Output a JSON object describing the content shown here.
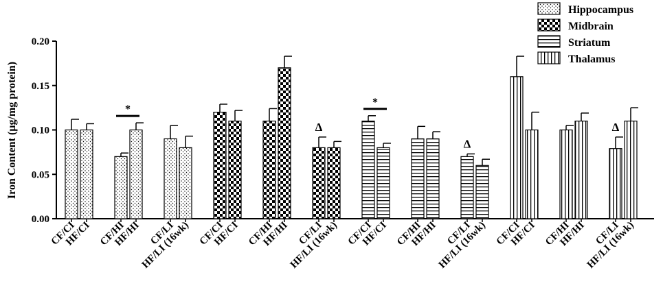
{
  "chart_data": {
    "type": "bar",
    "ylabel": "Iron Content (µg/mg protein)",
    "ylim": [
      0,
      0.2
    ],
    "yticks": [
      "0.00",
      "0.05",
      "0.10",
      "0.15",
      "0.20"
    ],
    "ytick_values": [
      0,
      0.05,
      0.1,
      0.15,
      0.2
    ],
    "legend_position": "top-right",
    "legend": [
      {
        "name": "Hippocampus",
        "pattern": "dots"
      },
      {
        "name": "Midbrain",
        "pattern": "checker"
      },
      {
        "name": "Striatum",
        "pattern": "hlines"
      },
      {
        "name": "Thalamus",
        "pattern": "vlines"
      }
    ],
    "bars": [
      {
        "region": "Hippocampus",
        "label": "CF/CI",
        "value": 0.1,
        "error": 0.012
      },
      {
        "region": "Hippocampus",
        "label": "HF/CI",
        "value": 0.1,
        "error": 0.007
      },
      {
        "region": "Hippocampus",
        "label": "CF/HI",
        "value": 0.07,
        "error": 0.004
      },
      {
        "region": "Hippocampus",
        "label": "HF/HI",
        "value": 0.1,
        "error": 0.008
      },
      {
        "region": "Hippocampus",
        "label": "CF/LI",
        "value": 0.09,
        "error": 0.015
      },
      {
        "region": "Hippocampus",
        "label": "HF/LI (16wk)",
        "value": 0.08,
        "error": 0.013
      },
      {
        "region": "Midbrain",
        "label": "CF/CI",
        "value": 0.12,
        "error": 0.009
      },
      {
        "region": "Midbrain",
        "label": "HF/CI",
        "value": 0.11,
        "error": 0.012
      },
      {
        "region": "Midbrain",
        "label": "CF/HI",
        "value": 0.11,
        "error": 0.014
      },
      {
        "region": "Midbrain",
        "label": "HF/HI",
        "value": 0.17,
        "error": 0.013
      },
      {
        "region": "Midbrain",
        "label": "CF/LI",
        "value": 0.08,
        "error": 0.012
      },
      {
        "region": "Midbrain",
        "label": "HF/LI (16wk)",
        "value": 0.08,
        "error": 0.007
      },
      {
        "region": "Striatum",
        "label": "CF/CI",
        "value": 0.11,
        "error": 0.006
      },
      {
        "region": "Striatum",
        "label": "HF/CI",
        "value": 0.08,
        "error": 0.005
      },
      {
        "region": "Striatum",
        "label": "CF/HI",
        "value": 0.09,
        "error": 0.014
      },
      {
        "region": "Striatum",
        "label": "HF/HI",
        "value": 0.09,
        "error": 0.008
      },
      {
        "region": "Striatum",
        "label": "CF/LI",
        "value": 0.07,
        "error": 0.003
      },
      {
        "region": "Striatum",
        "label": "HF/LI (16wk)",
        "value": 0.06,
        "error": 0.007
      },
      {
        "region": "Thalamus",
        "label": "CF/CI",
        "value": 0.16,
        "error": 0.023
      },
      {
        "region": "Thalamus",
        "label": "HF/CI",
        "value": 0.1,
        "error": 0.02
      },
      {
        "region": "Thalamus",
        "label": "CF/HI",
        "value": 0.1,
        "error": 0.005
      },
      {
        "region": "Thalamus",
        "label": "HF/HI",
        "value": 0.11,
        "error": 0.009
      },
      {
        "region": "Thalamus",
        "label": "CF/LI",
        "value": 0.079,
        "error": 0.013
      },
      {
        "region": "Thalamus",
        "label": "HF/LI (16wk)",
        "value": 0.11,
        "error": 0.015
      }
    ],
    "annotations": [
      {
        "text": "*",
        "type": "bracket",
        "from_bar": 2,
        "to_bar": 3
      },
      {
        "text": "*",
        "type": "bracket",
        "from_bar": 12,
        "to_bar": 13
      },
      {
        "text": "Δ",
        "type": "marker",
        "bar": 10
      },
      {
        "text": "Δ",
        "type": "marker",
        "bar": 16
      },
      {
        "text": "Δ",
        "type": "marker",
        "bar": 22
      }
    ]
  }
}
